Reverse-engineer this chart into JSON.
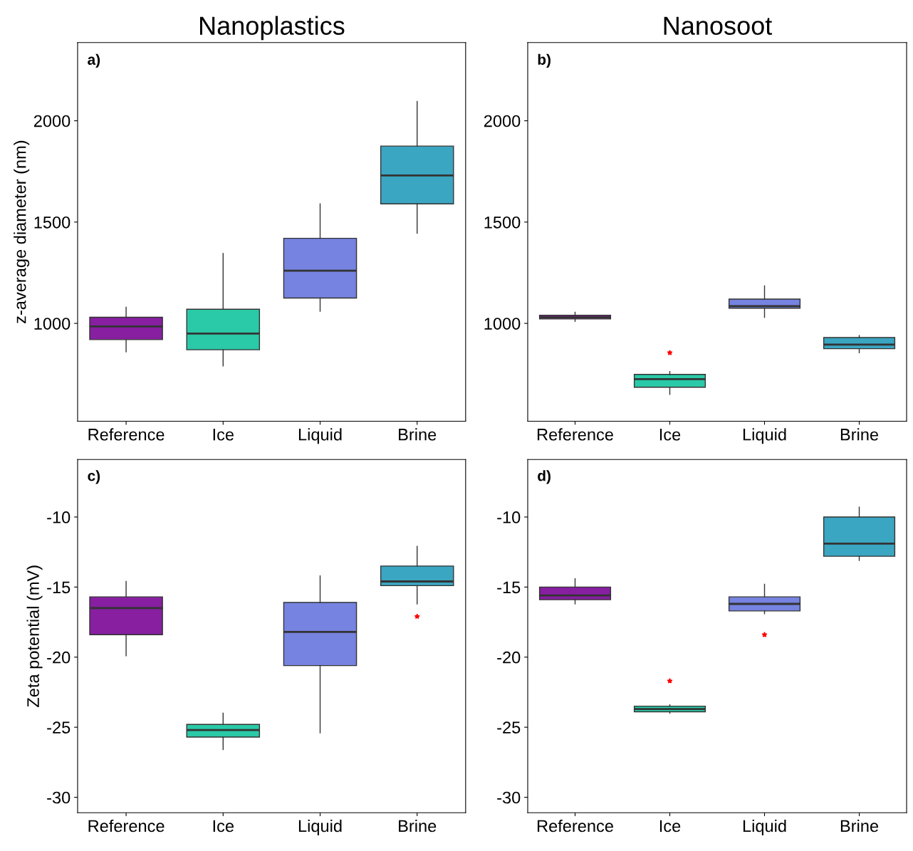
{
  "chart_data": [
    {
      "type": "box",
      "title": "Nanoplastics",
      "ylabel": "z-average diameter (nm)",
      "annotations": [
        "a)"
      ],
      "categories": [
        "Reference",
        "Ice",
        "Liquid",
        "Brine"
      ],
      "colors": [
        "#871fa0",
        "#2ac9a7",
        "#7683e0",
        "#3ba6c2"
      ],
      "boxes": [
        {
          "low": 860,
          "q1": 920,
          "median": 985,
          "q3": 1030,
          "high": 1080
        },
        {
          "low": 790,
          "q1": 870,
          "median": 950,
          "q3": 1070,
          "high": 1345
        },
        {
          "low": 1060,
          "q1": 1125,
          "median": 1260,
          "q3": 1420,
          "high": 1590
        },
        {
          "low": 1445,
          "q1": 1590,
          "median": 1730,
          "q3": 1875,
          "high": 2095
        }
      ],
      "ylim": [
        517,
        2386
      ],
      "yticks": [
        1000,
        1500,
        2000
      ],
      "grid": false
    },
    {
      "type": "box",
      "title": "Nanosoot",
      "annotations": [
        "b)"
      ],
      "categories": [
        "Reference",
        "Ice",
        "Liquid",
        "Brine"
      ],
      "colors": [
        "#871fa0",
        "#2ac9a7",
        "#7683e0",
        "#3ba6c2"
      ],
      "boxes": [
        {
          "low": 1010,
          "q1": 1022,
          "median": 1030,
          "q3": 1040,
          "high": 1055
        },
        {
          "low": 650,
          "q1": 685,
          "median": 725,
          "q3": 748,
          "high": 762,
          "outliers": [
            855
          ]
        },
        {
          "low": 1030,
          "q1": 1075,
          "median": 1085,
          "q3": 1120,
          "high": 1185
        },
        {
          "low": 855,
          "q1": 875,
          "median": 895,
          "q3": 930,
          "high": 940
        }
      ],
      "ylim": [
        517,
        2386
      ],
      "yticks": [
        1000,
        1500,
        2000
      ],
      "grid": false
    },
    {
      "type": "box",
      "ylabel": "Zeta potential (mV)",
      "annotations": [
        "c)"
      ],
      "categories": [
        "Reference",
        "Ice",
        "Liquid",
        "Brine"
      ],
      "colors": [
        "#871fa0",
        "#2ac9a7",
        "#7683e0",
        "#3ba6c2"
      ],
      "boxes": [
        {
          "low": -19.9,
          "q1": -18.4,
          "median": -16.5,
          "q3": -15.7,
          "high": -14.6
        },
        {
          "low": -26.6,
          "q1": -25.7,
          "median": -25.2,
          "q3": -24.8,
          "high": -24.0
        },
        {
          "low": -25.4,
          "q1": -20.6,
          "median": -18.2,
          "q3": -16.1,
          "high": -14.2
        },
        {
          "low": -16.2,
          "q1": -14.9,
          "median": -14.6,
          "q3": -13.5,
          "high": -12.1,
          "outliers": [
            -17.1
          ]
        }
      ],
      "ylim": [
        -31.1,
        -5.9
      ],
      "yticks": [
        -10,
        -15,
        -20,
        -25,
        -30
      ],
      "grid": false
    },
    {
      "type": "box",
      "annotations": [
        "d)"
      ],
      "categories": [
        "Reference",
        "Ice",
        "Liquid",
        "Brine"
      ],
      "colors": [
        "#871fa0",
        "#2ac9a7",
        "#7683e0",
        "#3ba6c2"
      ],
      "boxes": [
        {
          "low": -16.2,
          "q1": -15.9,
          "median": -15.6,
          "q3": -15.0,
          "high": -14.4
        },
        {
          "low": -24.0,
          "q1": -23.9,
          "median": -23.7,
          "q3": -23.5,
          "high": -23.4,
          "outliers": [
            -21.7
          ]
        },
        {
          "low": -16.9,
          "q1": -16.7,
          "median": -16.2,
          "q3": -15.7,
          "high": -14.8,
          "outliers": [
            -18.4
          ]
        },
        {
          "low": -13.1,
          "q1": -12.8,
          "median": -11.9,
          "q3": -10.0,
          "high": -9.3
        }
      ],
      "ylim": [
        -31.1,
        -5.9
      ],
      "yticks": [
        -10,
        -15,
        -20,
        -25,
        -30
      ],
      "grid": false
    }
  ]
}
